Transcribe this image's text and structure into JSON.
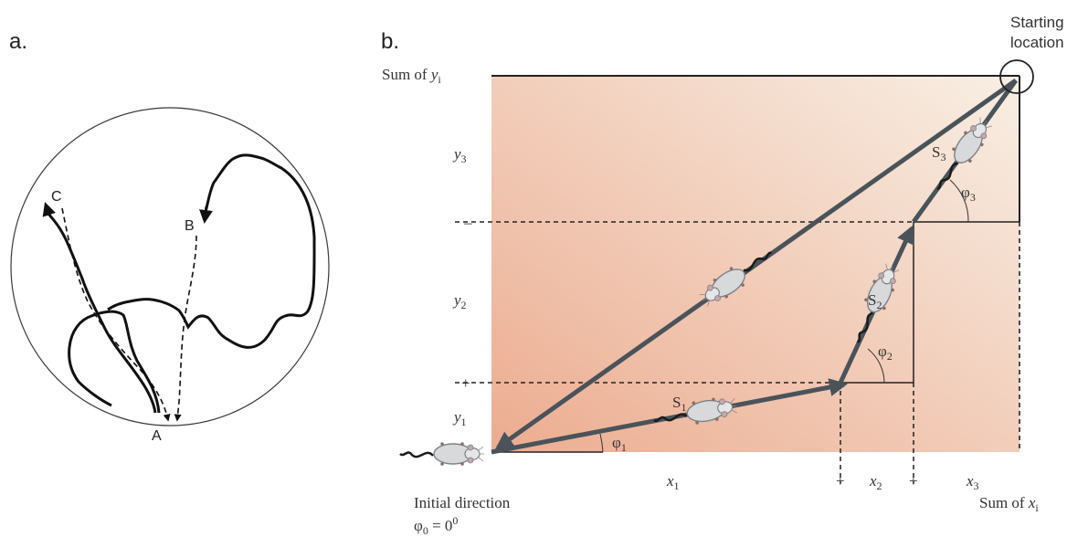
{
  "panel_a": {
    "label": "a.",
    "points": {
      "a": "A",
      "b": "B",
      "c": "C"
    }
  },
  "panel_b": {
    "label": "b.",
    "starting_location": [
      "Starting",
      "location"
    ],
    "sum_y": {
      "main": "Sum of ",
      "var": "y",
      "sub": "i"
    },
    "sum_x": {
      "main": "Sum of ",
      "var": "x",
      "sub": "i"
    },
    "y_labels": [
      {
        "var": "y",
        "sub": "3"
      },
      {
        "var": "y",
        "sub": "2"
      },
      {
        "var": "y",
        "sub": "1"
      }
    ],
    "y_signs": [
      "–",
      "+"
    ],
    "x_labels": [
      {
        "var": "x",
        "sub": "1"
      },
      {
        "var": "x",
        "sub": "2"
      },
      {
        "var": "x",
        "sub": "3"
      }
    ],
    "x_signs": [
      "+",
      "+"
    ],
    "segments": [
      {
        "var": "S",
        "sub": "1"
      },
      {
        "var": "S",
        "sub": "2"
      },
      {
        "var": "S",
        "sub": "3"
      }
    ],
    "angles": [
      {
        "var": "φ",
        "sub": "1"
      },
      {
        "var": "φ",
        "sub": "2"
      },
      {
        "var": "φ",
        "sub": "3"
      }
    ],
    "initial_direction": "Initial direction",
    "phi0": {
      "var": "φ",
      "sub": "0",
      "rest": " = 0",
      "sup": "0"
    }
  },
  "colors": {
    "gradient_start": "#ecac90",
    "gradient_end": "#f8efe4",
    "vector": "#4a535a",
    "mouse_body": "#d7d9db"
  }
}
